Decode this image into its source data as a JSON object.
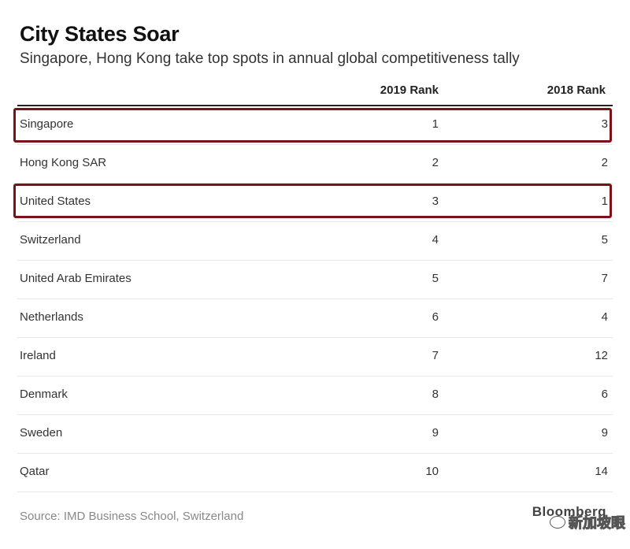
{
  "chart_data": {
    "type": "table",
    "title": "City States Soar",
    "subtitle": "Singapore, Hong Kong take top spots in annual global competitiveness tally",
    "columns": [
      "",
      "2019 Rank",
      "2018 Rank"
    ],
    "rows": [
      {
        "country": "Singapore",
        "rank_2019": 1,
        "rank_2018": 3,
        "highlighted": true
      },
      {
        "country": "Hong Kong SAR",
        "rank_2019": 2,
        "rank_2018": 2,
        "highlighted": false
      },
      {
        "country": "United States",
        "rank_2019": 3,
        "rank_2018": 1,
        "highlighted": true
      },
      {
        "country": "Switzerland",
        "rank_2019": 4,
        "rank_2018": 5,
        "highlighted": false
      },
      {
        "country": "United Arab Emirates",
        "rank_2019": 5,
        "rank_2018": 7,
        "highlighted": false
      },
      {
        "country": "Netherlands",
        "rank_2019": 6,
        "rank_2018": 4,
        "highlighted": false
      },
      {
        "country": "Ireland",
        "rank_2019": 7,
        "rank_2018": 12,
        "highlighted": false
      },
      {
        "country": "Denmark",
        "rank_2019": 8,
        "rank_2018": 6,
        "highlighted": false
      },
      {
        "country": "Sweden",
        "rank_2019": 9,
        "rank_2018": 9,
        "highlighted": false
      },
      {
        "country": "Qatar",
        "rank_2019": 10,
        "rank_2018": 14,
        "highlighted": false
      }
    ],
    "source": "Source: IMD Business School, Switzerland",
    "highlight_color": "#7b1316"
  },
  "branding": {
    "logo": "Bloomberg",
    "watermark": "新加坡眼"
  }
}
